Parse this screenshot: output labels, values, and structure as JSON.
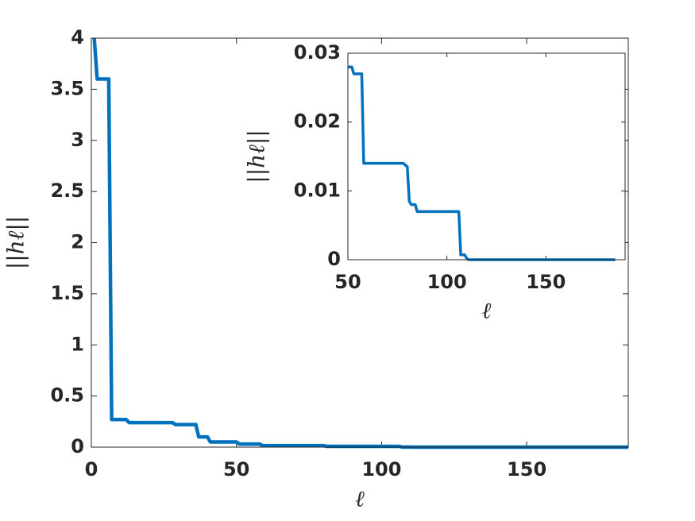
{
  "chart_data": [
    {
      "type": "line",
      "color": "#0072bd",
      "x": [
        1,
        2,
        3,
        6,
        7,
        7,
        12,
        13,
        28,
        29,
        36,
        37,
        40,
        41,
        50,
        51,
        58,
        59,
        80,
        81,
        106,
        107,
        110,
        111,
        185
      ],
      "values": [
        4,
        3.6,
        3.6,
        3.6,
        0.27,
        0.27,
        0.27,
        0.24,
        0.24,
        0.22,
        0.22,
        0.1,
        0.1,
        0.05,
        0.05,
        0.03,
        0.03,
        0.015,
        0.015,
        0.008,
        0.008,
        0.001,
        0.001,
        0,
        0
      ],
      "xlim": [
        0,
        185
      ],
      "ylim": [
        0,
        4
      ],
      "xticks": [
        0,
        50,
        100,
        150
      ],
      "yticks": [
        0,
        0.5,
        1,
        1.5,
        2,
        2.5,
        3,
        3.5,
        4
      ],
      "x_label": "ℓ",
      "y_label": "||hℓ||"
    },
    {
      "type": "line",
      "color": "#0072bd",
      "x": [
        50,
        52,
        53,
        57,
        58,
        59,
        78,
        80,
        81,
        82,
        84,
        85,
        106,
        107,
        109,
        110,
        111,
        185
      ],
      "values": [
        0.028,
        0.028,
        0.027,
        0.027,
        0.014,
        0.014,
        0.014,
        0.0135,
        0.0085,
        0.008,
        0.008,
        0.007,
        0.007,
        0.0007,
        0.0007,
        0.0002,
        0,
        0
      ],
      "xlim": [
        50,
        190
      ],
      "ylim": [
        0,
        0.03
      ],
      "xticks": [
        50,
        100,
        150
      ],
      "yticks": [
        0,
        0.01,
        0.02,
        0.03
      ],
      "x_label": "ℓ",
      "y_label": "||hℓ||"
    }
  ]
}
